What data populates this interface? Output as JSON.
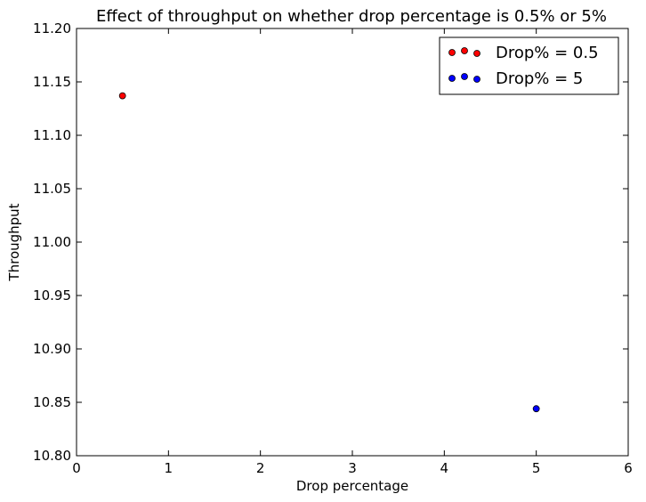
{
  "chart_data": {
    "type": "scatter",
    "title": "Effect of throughput on whether drop percentage is 0.5% or 5%",
    "xlabel": "Drop percentage",
    "ylabel": "Throughput",
    "xlim": [
      0,
      6
    ],
    "ylim": [
      10.8,
      11.2
    ],
    "xticks": [
      "0",
      "1",
      "2",
      "3",
      "4",
      "5",
      "6"
    ],
    "yticks": [
      "10.80",
      "10.85",
      "10.90",
      "10.95",
      "11.00",
      "11.05",
      "11.10",
      "11.15",
      "11.20"
    ],
    "grid": false,
    "legend_position": "top-right",
    "series": [
      {
        "name": "Drop% = 0.5",
        "color": "#ff0000",
        "points": [
          {
            "x": 0.5,
            "y": 11.137
          }
        ]
      },
      {
        "name": "Drop% = 5",
        "color": "#0000ff",
        "points": [
          {
            "x": 5,
            "y": 10.844
          }
        ]
      }
    ]
  }
}
